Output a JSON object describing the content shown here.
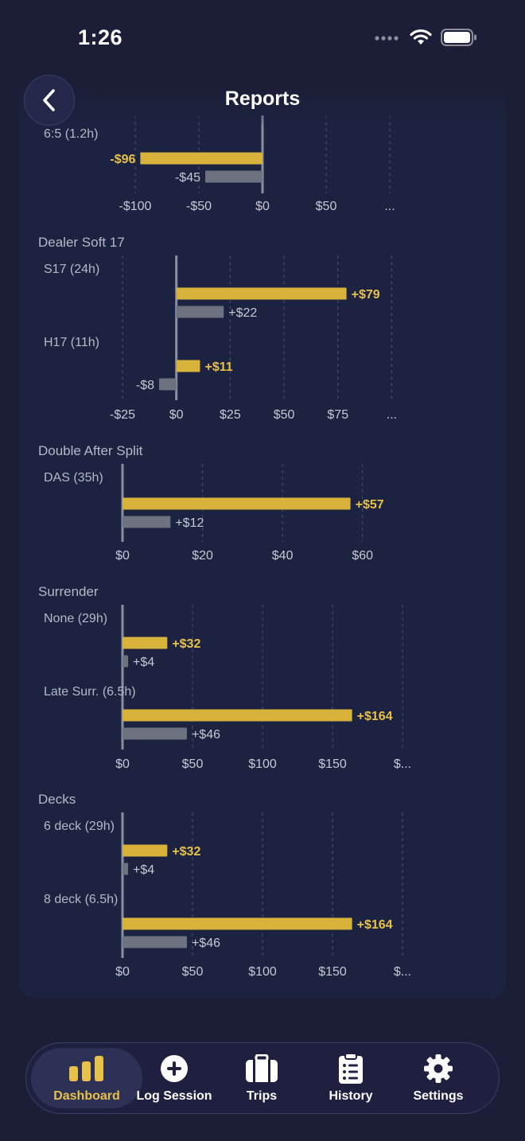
{
  "status_bar": {
    "time": "1:26"
  },
  "header": {
    "title": "Reports"
  },
  "colors": {
    "gold": "#d9b23c",
    "gray": "#6e7180",
    "label": "#b6b8c6",
    "tick": "#c6c8d4",
    "grid": "#4b5170",
    "axis": "#8a8fa4",
    "gold_text": "#e8c14b"
  },
  "chart_data": [
    {
      "type": "bar",
      "title": "",
      "categories": [
        "6:5 (1.2h)"
      ],
      "series": [
        {
          "values": [
            -96
          ],
          "labels": [
            "-$96"
          ]
        },
        {
          "values": [
            -45
          ],
          "labels": [
            "-$45"
          ]
        }
      ],
      "xticks": [
        "-$100",
        "-$50",
        "$0",
        "$50",
        "..."
      ],
      "tick_values": [
        -100,
        -50,
        0,
        50,
        100
      ],
      "xlim": [
        -110,
        110
      ]
    },
    {
      "type": "bar",
      "title": "Dealer Soft 17",
      "categories": [
        "S17 (24h)",
        "H17 (11h)"
      ],
      "series": [
        {
          "values": [
            79,
            11
          ],
          "labels": [
            "+$79",
            "+$11"
          ]
        },
        {
          "values": [
            22,
            -8
          ],
          "labels": [
            "+$22",
            "-$8"
          ]
        }
      ],
      "xticks": [
        "-$25",
        "$0",
        "$25",
        "$50",
        "$75",
        "..."
      ],
      "tick_values": [
        -25,
        0,
        25,
        50,
        75,
        100
      ],
      "xlim": [
        -25,
        105
      ]
    },
    {
      "type": "bar",
      "title": "Double After Split",
      "categories": [
        "DAS (35h)"
      ],
      "series": [
        {
          "values": [
            57
          ],
          "labels": [
            "+$57"
          ]
        },
        {
          "values": [
            12
          ],
          "labels": [
            "+$12"
          ]
        }
      ],
      "xticks": [
        "$0",
        "$20",
        "$40",
        "$60"
      ],
      "tick_values": [
        0,
        20,
        40,
        60
      ],
      "xlim": [
        0,
        70
      ]
    },
    {
      "type": "bar",
      "title": "Surrender",
      "categories": [
        "None (29h)",
        "Late Surr. (6.5h)"
      ],
      "series": [
        {
          "values": [
            32,
            164
          ],
          "labels": [
            "+$32",
            "+$164"
          ]
        },
        {
          "values": [
            4,
            46
          ],
          "labels": [
            "+$4",
            "+$46"
          ]
        }
      ],
      "xticks": [
        "$0",
        "$50",
        "$100",
        "$150",
        "$..."
      ],
      "tick_values": [
        0,
        50,
        100,
        150,
        200
      ],
      "xlim": [
        0,
        200
      ]
    },
    {
      "type": "bar",
      "title": "Decks",
      "categories": [
        "6 deck (29h)",
        "8 deck (6.5h)"
      ],
      "series": [
        {
          "values": [
            32,
            164
          ],
          "labels": [
            "+$32",
            "+$164"
          ]
        },
        {
          "values": [
            4,
            46
          ],
          "labels": [
            "+$4",
            "+$46"
          ]
        }
      ],
      "xticks": [
        "$0",
        "$50",
        "$100",
        "$150",
        "$..."
      ],
      "tick_values": [
        0,
        50,
        100,
        150,
        200
      ],
      "xlim": [
        0,
        200
      ]
    }
  ],
  "tab_bar": {
    "items": [
      {
        "label": "Dashboard",
        "icon": "bar-chart-icon",
        "active": true
      },
      {
        "label": "Log Session",
        "icon": "plus-circle-icon",
        "active": false
      },
      {
        "label": "Trips",
        "icon": "suitcase-icon",
        "active": false
      },
      {
        "label": "History",
        "icon": "clipboard-list-icon",
        "active": false
      },
      {
        "label": "Settings",
        "icon": "gear-icon",
        "active": false
      }
    ]
  }
}
